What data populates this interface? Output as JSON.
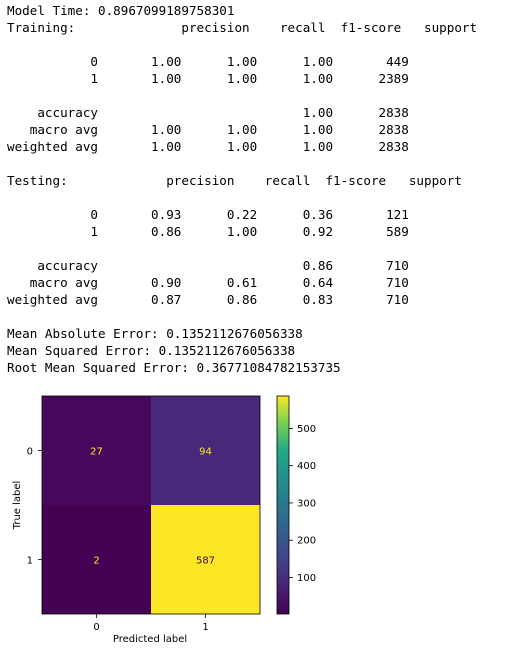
{
  "output": {
    "lines": [
      "Model Time: 0.8967099189758301",
      "Training:              precision    recall  f1-score   support",
      "",
      "           0       1.00      1.00      1.00       449",
      "           1       1.00      1.00      1.00      2389",
      "",
      "    accuracy                           1.00      2838",
      "   macro avg       1.00      1.00      1.00      2838",
      "weighted avg       1.00      1.00      1.00      2838",
      "",
      "Testing:             precision    recall  f1-score   support",
      "",
      "           0       0.93      0.22      0.36       121",
      "           1       0.86      1.00      0.92       589",
      "",
      "    accuracy                           0.86       710",
      "   macro avg       0.90      0.61      0.64       710",
      "weighted avg       0.87      0.86      0.83       710",
      "",
      "Mean Absolute Error: 0.1352112676056338",
      "Mean Squared Error: 0.1352112676056338",
      "Root Mean Squared Error: 0.36771084782153735"
    ]
  },
  "chart_data": {
    "type": "heatmap",
    "title": "",
    "xlabel": "Predicted label",
    "ylabel": "True label",
    "x_categories": [
      "0",
      "1"
    ],
    "y_categories": [
      "0",
      "1"
    ],
    "values": [
      [
        27,
        94
      ],
      [
        2,
        587
      ]
    ],
    "colormap": "viridis",
    "colorbar": {
      "range": [
        2,
        587
      ],
      "ticks": [
        "100",
        "200",
        "300",
        "400",
        "500"
      ],
      "tick_values": [
        100,
        200,
        300,
        400,
        500
      ]
    },
    "colors": {
      "cell_0_0": "#46085c",
      "cell_0_1": "#482979",
      "cell_1_0": "#440154",
      "cell_1_1": "#fde725",
      "text_on_dark": "#fde725",
      "text_on_light": "#440154"
    }
  }
}
